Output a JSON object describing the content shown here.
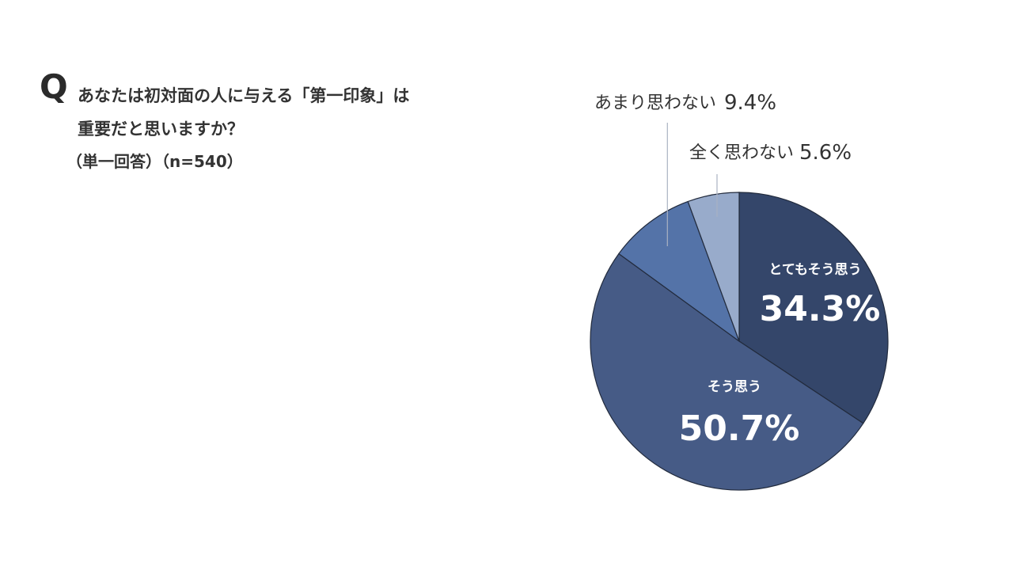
{
  "question": {
    "mark": "Q",
    "line1": "あなたは初対面の人に与える「第一印象」は",
    "line2": "重要だと思いますか？",
    "note": "（単一回答）（n=540）"
  },
  "chart_data": {
    "type": "pie",
    "start_angle": "12 o'clock, clockwise",
    "slices": [
      {
        "label": "とてもそう思う",
        "value": 34.3,
        "value_label": "34.3%",
        "color": "#34466a",
        "label_position": "inside"
      },
      {
        "label": "そう思う",
        "value": 50.7,
        "value_label": "50.7%",
        "color": "#465b86",
        "label_position": "inside"
      },
      {
        "label": "あまり思わない",
        "value": 9.4,
        "value_label": "9.4%",
        "color": "#5473a8",
        "label_position": "outside-callout"
      },
      {
        "label": "全く思わない",
        "value": 5.6,
        "value_label": "5.6%",
        "color": "#98abcb",
        "label_position": "outside-callout"
      }
    ]
  }
}
